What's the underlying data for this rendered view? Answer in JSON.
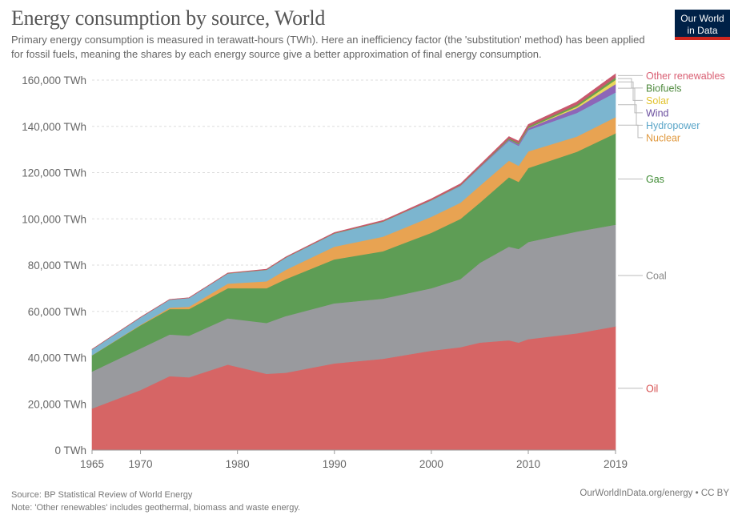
{
  "title": "Energy consumption by source, World",
  "subtitle": "Primary energy consumption is measured in terawatt-hours (TWh). Here an inefficiency factor (the 'substitution' method) has been applied for fossil fuels, meaning the shares by each energy source give a better approximation of final energy consumption.",
  "logo": {
    "line1": "Our World",
    "line2": "in Data",
    "bg_color": "#002147",
    "accent_color": "#ce261e"
  },
  "footer": {
    "source": "Source: BP Statistical Review of World Energy",
    "note": "Note: 'Other renewables' includes geothermal, biomass and waste energy.",
    "credit": "OurWorldInData.org/energy • CC BY"
  },
  "chart_data": {
    "type": "area",
    "stacked": true,
    "title": "Energy consumption by source, World",
    "xlabel": "",
    "ylabel": "",
    "xlim": [
      1965,
      2019
    ],
    "ylim": [
      0,
      160000
    ],
    "y_unit": "TWh",
    "grid": "horizontal dotted",
    "legend_placement": "right (inline labels)",
    "x_ticks": [
      "1965",
      "1970",
      "1980",
      "1990",
      "2000",
      "2010",
      "2019"
    ],
    "y_ticks": [
      "0 TWh",
      "20,000 TWh",
      "40,000 TWh",
      "60,000 TWh",
      "80,000 TWh",
      "100,000 TWh",
      "120,000 TWh",
      "140,000 TWh",
      "160,000 TWh"
    ],
    "x": [
      1965,
      1970,
      1973,
      1975,
      1979,
      1983,
      1985,
      1990,
      1995,
      2000,
      2003,
      2005,
      2008,
      2009,
      2010,
      2015,
      2019
    ],
    "series": [
      {
        "name": "Oil",
        "color": "#d66565",
        "label_color": "#d64f4f",
        "values": [
          18000,
          26000,
          32000,
          31500,
          37000,
          33000,
          33500,
          37500,
          39500,
          43000,
          44500,
          46500,
          47500,
          46500,
          48000,
          50500,
          53500
        ]
      },
      {
        "name": "Coal",
        "color": "#999a9e",
        "label_color": "#888888",
        "values": [
          16000,
          18000,
          18000,
          18000,
          20000,
          22000,
          24500,
          26000,
          26000,
          27000,
          29500,
          34500,
          40500,
          40500,
          42000,
          44000,
          44000
        ]
      },
      {
        "name": "Gas",
        "color": "#5e9d55",
        "label_color": "#3d8a32",
        "values": [
          7000,
          10000,
          11000,
          11500,
          13000,
          15000,
          16000,
          19000,
          20500,
          24000,
          26000,
          26000,
          30000,
          29000,
          32000,
          34500,
          39500
        ]
      },
      {
        "name": "Nuclear",
        "color": "#e8a352",
        "label_color": "#e0993f",
        "values": [
          70,
          200,
          600,
          1000,
          2000,
          3000,
          4000,
          5500,
          6300,
          6900,
          7000,
          7300,
          7200,
          7000,
          7200,
          6600,
          7000
        ]
      },
      {
        "name": "Hydropower",
        "color": "#7cb5cf",
        "label_color": "#5aa5c8",
        "values": [
          2500,
          3200,
          3500,
          3800,
          4400,
          5000,
          5300,
          5700,
          6500,
          7100,
          7300,
          7900,
          8600,
          8600,
          9200,
          10200,
          10700
        ]
      },
      {
        "name": "Wind",
        "color": "#8d66b8",
        "label_color": "#6b4f9f",
        "values": [
          0,
          0,
          0,
          0,
          0,
          0,
          0,
          10,
          20,
          80,
          170,
          270,
          560,
          700,
          890,
          2100,
          3600
        ]
      },
      {
        "name": "Solar",
        "color": "#e9d85c",
        "label_color": "#e2c22f",
        "values": [
          0,
          0,
          0,
          0,
          0,
          0,
          0,
          0,
          0,
          5,
          10,
          15,
          30,
          50,
          85,
          650,
          1800
        ]
      },
      {
        "name": "Biofuels",
        "color": "#6a9e4e",
        "label_color": "#4f8a3e",
        "values": [
          0,
          0,
          0,
          0,
          50,
          80,
          90,
          100,
          100,
          100,
          150,
          200,
          450,
          500,
          600,
          800,
          1100
        ]
      },
      {
        "name": "Other renewables",
        "color": "#c8586d",
        "label_color": "#d95f73",
        "values": [
          50,
          80,
          100,
          110,
          140,
          170,
          200,
          300,
          400,
          500,
          550,
          600,
          750,
          800,
          850,
          1200,
          1500
        ]
      }
    ]
  }
}
